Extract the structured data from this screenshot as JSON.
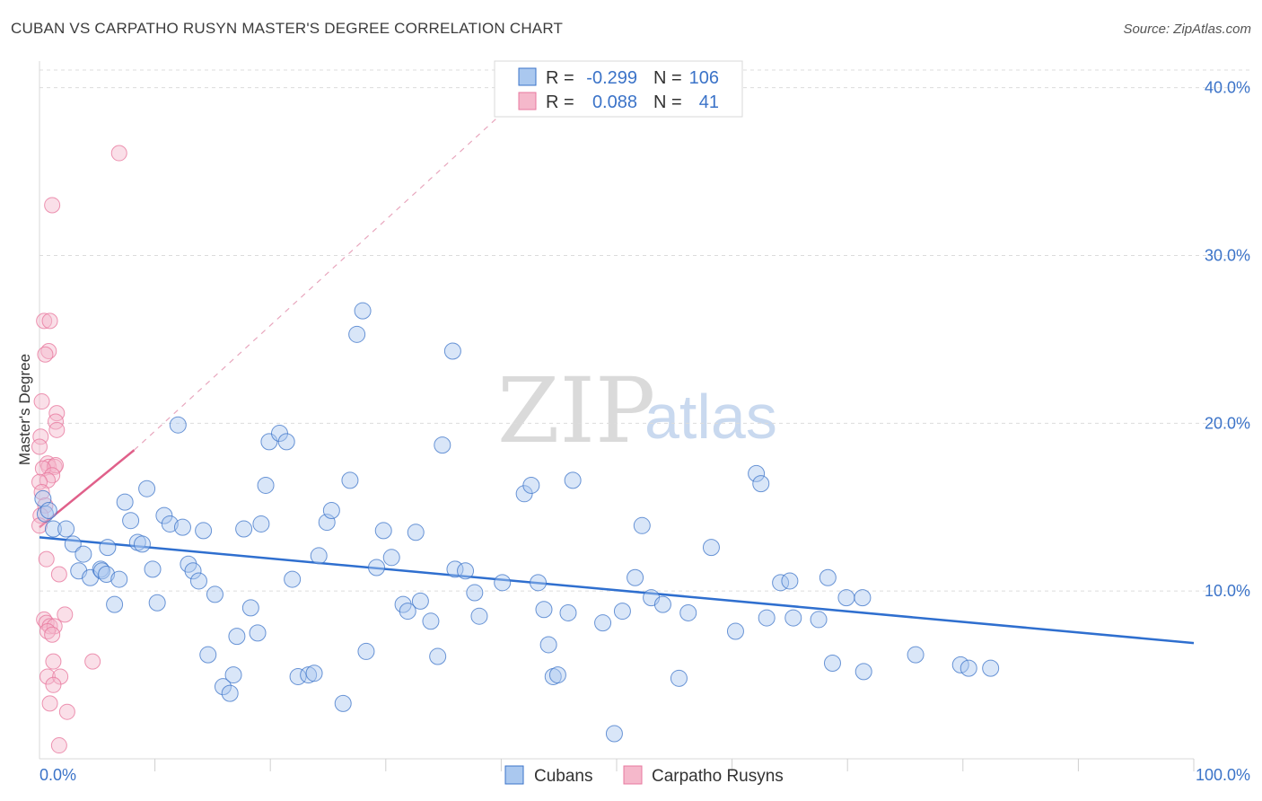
{
  "header": {
    "title": "CUBAN VS CARPATHO RUSYN MASTER'S DEGREE CORRELATION CHART",
    "source": "Source: ZipAtlas.com"
  },
  "watermark": {
    "part1": "ZIP",
    "part2": "atlas"
  },
  "colors": {
    "blue": "#3b73c8",
    "blue_fill": "#aac8ef",
    "pink": "#e8799f",
    "pink_fill": "#f5b8cb"
  },
  "chart_data": {
    "type": "scatter",
    "title": "CUBAN VS CARPATHO RUSYN MASTER'S DEGREE CORRELATION CHART",
    "xlabel": "",
    "ylabel": "Master's Degree",
    "xlim": [
      0,
      100
    ],
    "ylim": [
      0,
      41
    ],
    "x_tick_labels": [
      "0.0%",
      "100.0%"
    ],
    "y_ticks": [
      10,
      20,
      30,
      40
    ],
    "y_tick_labels": [
      "10.0%",
      "20.0%",
      "30.0%",
      "40.0%"
    ],
    "legend": {
      "rows": [
        {
          "r_label": "R =",
          "r_value": "-0.299",
          "n_label": "N =",
          "n_value": "106"
        },
        {
          "r_label": "R =",
          "r_value": "0.088",
          "n_label": "N =",
          "n_value": "41"
        }
      ]
    },
    "series": [
      {
        "name": "Cubans",
        "color": "#3b73c8",
        "trend": {
          "x0": 0,
          "y0": 13.2,
          "x1": 100,
          "y1": 6.9
        },
        "points": [
          [
            0.3,
            15.5
          ],
          [
            0.5,
            14.6
          ],
          [
            0.8,
            14.8
          ],
          [
            1.2,
            13.7
          ],
          [
            2.3,
            13.7
          ],
          [
            2.9,
            12.8
          ],
          [
            3.8,
            12.2
          ],
          [
            3.4,
            11.2
          ],
          [
            4.4,
            10.8
          ],
          [
            5.3,
            11.3
          ],
          [
            5.4,
            11.2
          ],
          [
            5.8,
            11.0
          ],
          [
            5.9,
            12.6
          ],
          [
            6.5,
            9.2
          ],
          [
            6.9,
            10.7
          ],
          [
            7.4,
            15.3
          ],
          [
            7.9,
            14.2
          ],
          [
            8.5,
            12.9
          ],
          [
            8.9,
            12.8
          ],
          [
            9.3,
            16.1
          ],
          [
            9.8,
            11.3
          ],
          [
            10.2,
            9.3
          ],
          [
            10.8,
            14.5
          ],
          [
            11.3,
            14.0
          ],
          [
            12.0,
            19.9
          ],
          [
            12.4,
            13.8
          ],
          [
            12.9,
            11.6
          ],
          [
            13.3,
            11.2
          ],
          [
            13.8,
            10.6
          ],
          [
            14.2,
            13.6
          ],
          [
            14.6,
            6.2
          ],
          [
            15.2,
            9.8
          ],
          [
            15.9,
            4.3
          ],
          [
            16.5,
            3.9
          ],
          [
            16.8,
            5.0
          ],
          [
            17.1,
            7.3
          ],
          [
            17.7,
            13.7
          ],
          [
            18.3,
            9.0
          ],
          [
            18.9,
            7.5
          ],
          [
            19.2,
            14.0
          ],
          [
            19.6,
            16.3
          ],
          [
            19.9,
            18.9
          ],
          [
            20.8,
            19.4
          ],
          [
            21.4,
            18.9
          ],
          [
            21.9,
            10.7
          ],
          [
            22.4,
            4.9
          ],
          [
            23.3,
            5.0
          ],
          [
            23.8,
            5.1
          ],
          [
            24.2,
            12.1
          ],
          [
            24.9,
            14.1
          ],
          [
            25.3,
            14.8
          ],
          [
            26.3,
            3.3
          ],
          [
            26.9,
            16.6
          ],
          [
            27.5,
            25.3
          ],
          [
            28.0,
            26.7
          ],
          [
            28.3,
            6.4
          ],
          [
            29.2,
            11.4
          ],
          [
            29.8,
            13.6
          ],
          [
            30.5,
            12.0
          ],
          [
            31.5,
            9.2
          ],
          [
            31.9,
            8.8
          ],
          [
            32.6,
            13.5
          ],
          [
            33.0,
            9.4
          ],
          [
            33.9,
            8.2
          ],
          [
            34.5,
            6.1
          ],
          [
            34.9,
            18.7
          ],
          [
            35.8,
            24.3
          ],
          [
            36.0,
            11.3
          ],
          [
            36.9,
            11.2
          ],
          [
            37.7,
            9.9
          ],
          [
            38.1,
            8.5
          ],
          [
            40.1,
            10.5
          ],
          [
            42.0,
            15.8
          ],
          [
            42.6,
            16.3
          ],
          [
            43.2,
            10.5
          ],
          [
            43.7,
            8.9
          ],
          [
            44.1,
            6.8
          ],
          [
            44.5,
            4.9
          ],
          [
            44.9,
            5.0
          ],
          [
            45.8,
            8.7
          ],
          [
            46.2,
            16.6
          ],
          [
            48.8,
            8.1
          ],
          [
            49.8,
            1.5
          ],
          [
            50.5,
            8.8
          ],
          [
            51.6,
            10.8
          ],
          [
            52.2,
            13.9
          ],
          [
            53.0,
            9.6
          ],
          [
            54.0,
            9.2
          ],
          [
            55.4,
            4.8
          ],
          [
            56.2,
            8.7
          ],
          [
            58.2,
            12.6
          ],
          [
            60.3,
            7.6
          ],
          [
            62.1,
            17.0
          ],
          [
            62.5,
            16.4
          ],
          [
            63.0,
            8.4
          ],
          [
            64.2,
            10.5
          ],
          [
            65.0,
            10.6
          ],
          [
            65.3,
            8.4
          ],
          [
            67.5,
            8.3
          ],
          [
            68.3,
            10.8
          ],
          [
            68.7,
            5.7
          ],
          [
            69.9,
            9.6
          ],
          [
            71.3,
            9.6
          ],
          [
            71.4,
            5.2
          ],
          [
            75.9,
            6.2
          ],
          [
            79.8,
            5.6
          ],
          [
            80.5,
            5.4
          ],
          [
            82.4,
            5.4
          ]
        ]
      },
      {
        "name": "Carpatho Rusyns",
        "color": "#e8799f",
        "trend": {
          "x0": 0,
          "y0": 13.8,
          "x1": 8.2,
          "y1": 18.4,
          "ext_x1": 42.5,
          "ext_y1": 40.0
        },
        "points": [
          [
            6.9,
            36.1
          ],
          [
            1.1,
            33.0
          ],
          [
            0.4,
            26.1
          ],
          [
            0.9,
            26.1
          ],
          [
            0.8,
            24.3
          ],
          [
            0.5,
            24.1
          ],
          [
            0.2,
            21.3
          ],
          [
            1.5,
            20.6
          ],
          [
            1.4,
            20.1
          ],
          [
            1.5,
            19.6
          ],
          [
            0.1,
            19.2
          ],
          [
            0.0,
            18.6
          ],
          [
            0.7,
            17.6
          ],
          [
            0.8,
            17.4
          ],
          [
            1.3,
            17.4
          ],
          [
            1.4,
            17.5
          ],
          [
            0.3,
            17.3
          ],
          [
            1.1,
            16.9
          ],
          [
            0.7,
            16.6
          ],
          [
            0.0,
            16.5
          ],
          [
            0.2,
            15.9
          ],
          [
            0.5,
            15.1
          ],
          [
            0.1,
            14.5
          ],
          [
            0.0,
            13.9
          ],
          [
            0.6,
            11.9
          ],
          [
            1.7,
            11.0
          ],
          [
            2.2,
            8.6
          ],
          [
            0.4,
            8.3
          ],
          [
            0.6,
            8.1
          ],
          [
            0.9,
            7.9
          ],
          [
            1.3,
            7.9
          ],
          [
            0.7,
            7.6
          ],
          [
            1.1,
            7.4
          ],
          [
            4.6,
            5.8
          ],
          [
            1.2,
            5.8
          ],
          [
            0.7,
            4.9
          ],
          [
            1.8,
            4.9
          ],
          [
            1.2,
            4.4
          ],
          [
            0.9,
            3.3
          ],
          [
            2.4,
            2.8
          ],
          [
            1.7,
            0.8
          ]
        ]
      }
    ]
  },
  "bottom_legend": {
    "items": [
      "Cubans",
      "Carpatho Rusyns"
    ]
  }
}
